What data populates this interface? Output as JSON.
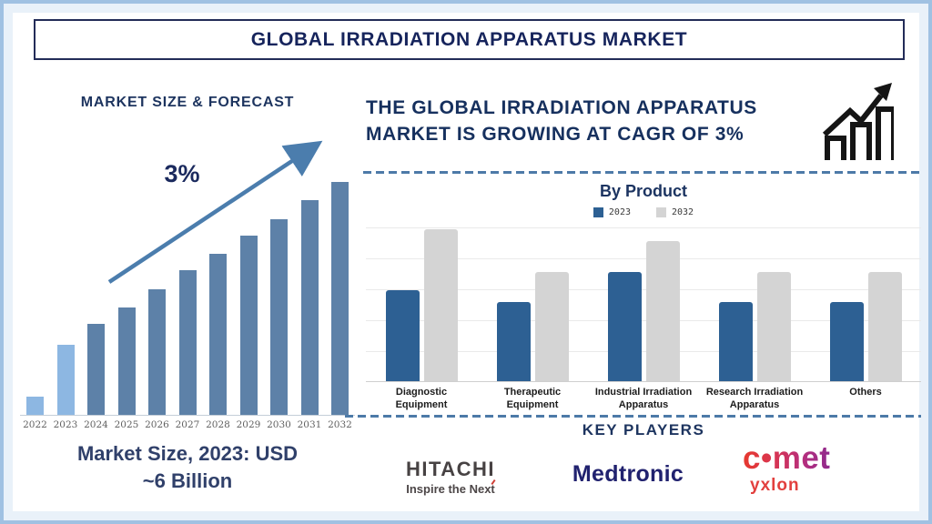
{
  "page_title": "GLOBAL IRRADIATION APPARATUS MARKET",
  "left_panel": {
    "note_line1": "Market Size, 2023: USD",
    "note_line2": "~6 Billion"
  },
  "right_panel": {
    "heading_line1": "THE GLOBAL IRRADIATION APPARATUS",
    "heading_line2": "MARKET IS GROWING AT CAGR OF 3%",
    "key_players_heading": "KEY PLAYERS",
    "key_players": [
      {
        "name": "HITACHI",
        "tagline": "Inspire the Next"
      },
      {
        "name": "Medtronic"
      },
      {
        "name": "c•met",
        "sub": "yxlon"
      }
    ]
  },
  "colors": {
    "navy_text": "#1d345f",
    "frame_border": "#a0c1e2",
    "dashed_divider": "#4d7aa8",
    "forecast_bar": "#5d81a8",
    "history_bar": "#8db7e2",
    "arrow": "#4b7dad",
    "product_2023_bar": "#2d6093",
    "product_2032_bar": "#d4d4d4",
    "hitachi_gray": "#474243",
    "medtronic_navy": "#21226f",
    "comet_red": "#e6392e",
    "comet_purple": "#8f2a8d",
    "yxlon_red": "#e2403e"
  },
  "chart_data": [
    {
      "type": "bar",
      "title": "MARKET SIZE & FORECAST",
      "categories": [
        "2022",
        "2023",
        "2024",
        "2025",
        "2026",
        "2027",
        "2028",
        "2029",
        "2030",
        "2031",
        "2032"
      ],
      "values": [
        8,
        30,
        39,
        46,
        54,
        62,
        69,
        77,
        84,
        92,
        100
      ],
      "value_scale": "relative bar height, 2032 bar = 100 (no numeric axis shown)",
      "annotation": "3%",
      "note": "Market Size, 2023: USD ~6 Billion",
      "highlight_first_n": 2,
      "highlight_color": "#8db7e2",
      "bar_color": "#5d81a8",
      "grid": false,
      "legend_position": "none",
      "xlabel": "",
      "ylabel": ""
    },
    {
      "type": "bar",
      "title": "By Product",
      "categories": [
        "Diagnostic Equipment",
        "Therapeutic Equipment",
        "Industrial Irradiation Apparatus",
        "Research Irradiation Apparatus",
        "Others"
      ],
      "series": [
        {
          "name": "2023",
          "color": "#2d6093",
          "values": [
            60,
            52,
            72,
            52,
            52
          ]
        },
        {
          "name": "2032",
          "color": "#d4d4d4",
          "values": [
            100,
            72,
            92,
            72,
            72
          ]
        }
      ],
      "value_scale": "relative bar height, tallest bar (Diagnostic 2032) = 100 (no numeric axis shown)",
      "grid": true,
      "legend_position": "top",
      "xlabel": "",
      "ylabel": ""
    }
  ]
}
